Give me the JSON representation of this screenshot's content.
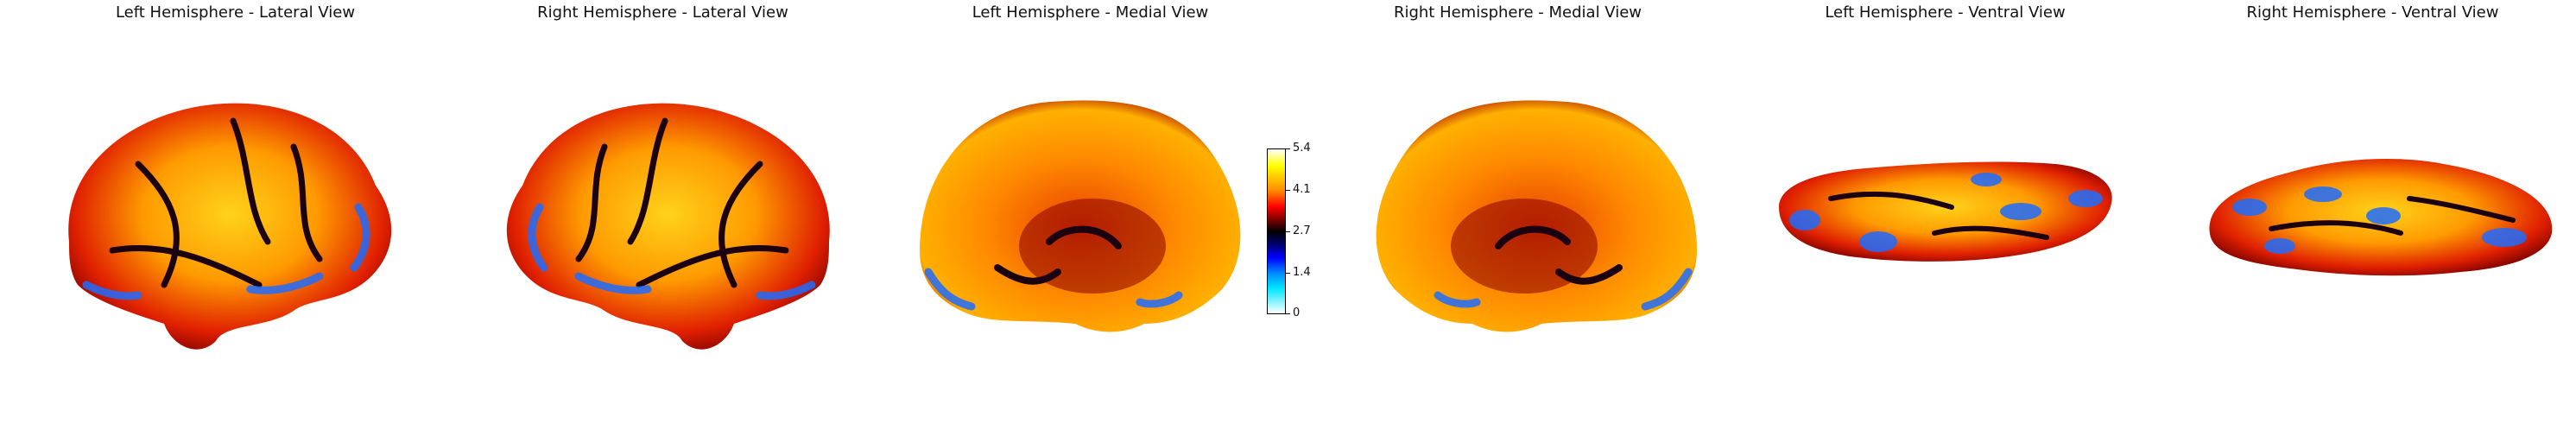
{
  "titles": {
    "lh_lateral": "Left Hemisphere - Lateral View",
    "rh_lateral": "Right Hemisphere - Lateral View",
    "lh_medial": "Left Hemisphere - Medial View",
    "rh_medial": "Right Hemisphere - Medial View",
    "lh_ventral": "Left Hemisphere - Ventral View",
    "rh_ventral": "Right Hemisphere - Ventral View"
  },
  "colorbar": {
    "ticks": [
      "5.4",
      "4.1",
      "2.7",
      "1.4",
      "0"
    ],
    "colormap": [
      "#ffffff",
      "#ffff00",
      "#ff8c00",
      "#ff0000",
      "#5a0000",
      "#000000",
      "#000070",
      "#0000ff",
      "#0090ff",
      "#00e6ff",
      "#ffffff"
    ]
  }
}
